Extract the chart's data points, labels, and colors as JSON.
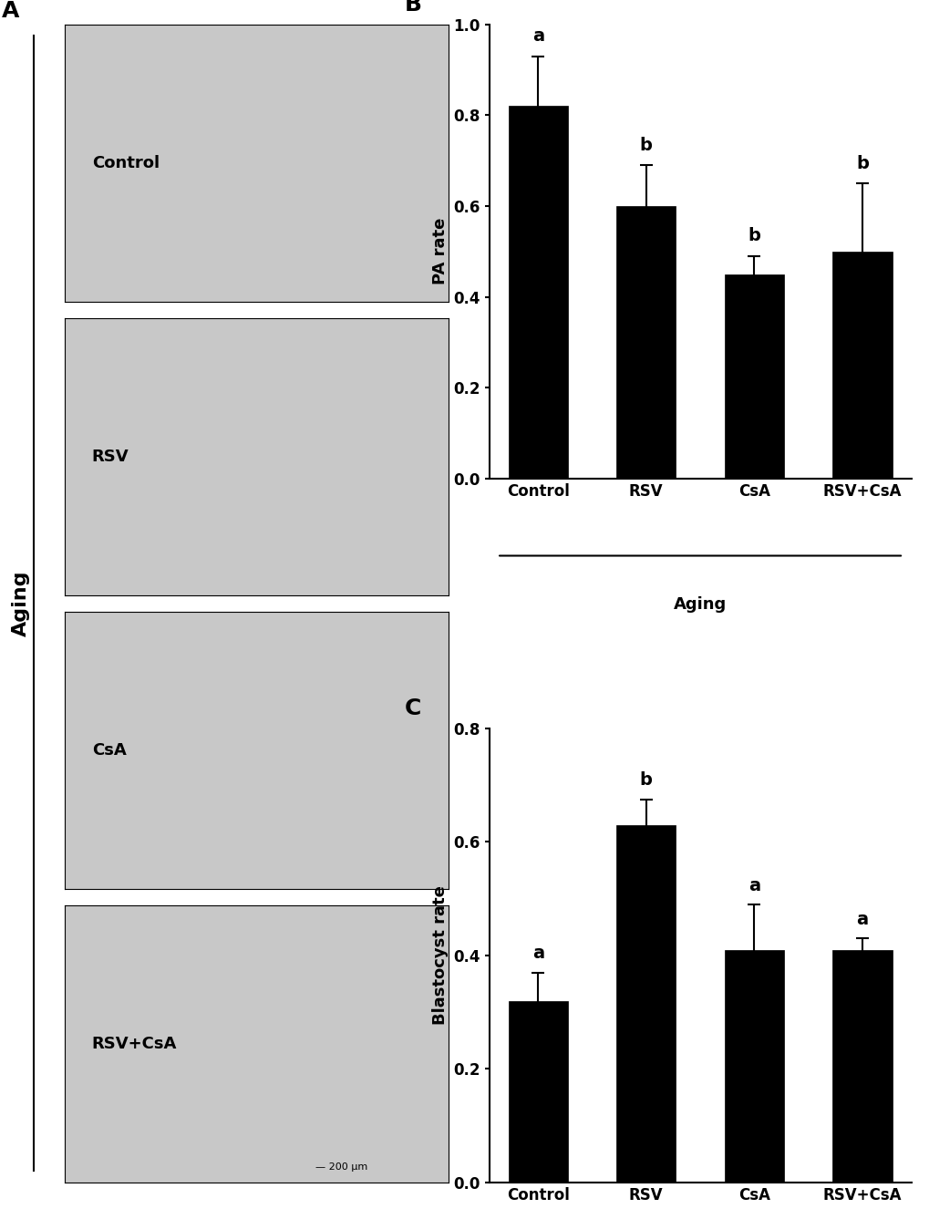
{
  "panel_B": {
    "categories": [
      "Control",
      "RSV",
      "CsA",
      "RSV+CsA"
    ],
    "values": [
      0.82,
      0.6,
      0.45,
      0.5
    ],
    "errors": [
      0.11,
      0.09,
      0.04,
      0.15
    ],
    "letters": [
      "a",
      "b",
      "b",
      "b"
    ],
    "ylabel": "PA rate",
    "ylim": [
      0.0,
      1.0
    ],
    "yticks": [
      0.0,
      0.2,
      0.4,
      0.6,
      0.8,
      1.0
    ],
    "xlabel_group": "Aging",
    "bar_color": "#000000",
    "letter_fontsize": 14,
    "label_fontsize": 13
  },
  "panel_C": {
    "categories": [
      "Control",
      "RSV",
      "CsA",
      "RSV+CsA"
    ],
    "values": [
      0.32,
      0.63,
      0.41,
      0.41
    ],
    "errors": [
      0.05,
      0.045,
      0.08,
      0.02
    ],
    "letters": [
      "a",
      "b",
      "a",
      "a"
    ],
    "ylabel": "Blastocyst rate",
    "ylim": [
      0.0,
      0.8
    ],
    "yticks": [
      0.0,
      0.2,
      0.4,
      0.6,
      0.8
    ],
    "xlabel_group": "Aging",
    "bar_color": "#000000",
    "letter_fontsize": 14,
    "label_fontsize": 13
  },
  "panel_A_labels": [
    "Control",
    "RSV",
    "CsA",
    "RSV+CsA"
  ],
  "aging_label": "Aging",
  "bg_color": "#ffffff",
  "panel_label_fontsize": 18,
  "axis_fontsize": 13,
  "tick_fontsize": 12
}
